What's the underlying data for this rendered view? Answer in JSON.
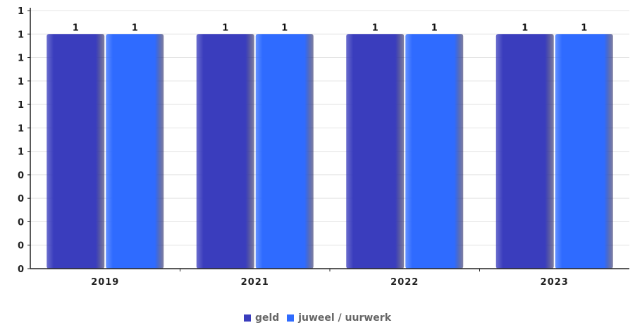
{
  "chart_data": {
    "type": "bar",
    "categories": [
      "2019",
      "2021",
      "2022",
      "2023"
    ],
    "series": [
      {
        "name": "geld",
        "values": [
          1,
          1,
          1,
          1
        ],
        "color": "#3a3dbd"
      },
      {
        "name": "juweel / uurwerk",
        "values": [
          1,
          1,
          1,
          1
        ],
        "color": "#2f6bff"
      }
    ],
    "y_tick_labels": [
      "0",
      "0",
      "0",
      "0",
      "0",
      "1",
      "1",
      "1",
      "1",
      "1",
      "1",
      "1"
    ],
    "ylim": [
      0,
      1.1
    ],
    "grid": true,
    "legend_position": "bottom-center",
    "data_labels": [
      "1",
      "1",
      "1",
      "1",
      "1",
      "1",
      "1",
      "1"
    ]
  }
}
